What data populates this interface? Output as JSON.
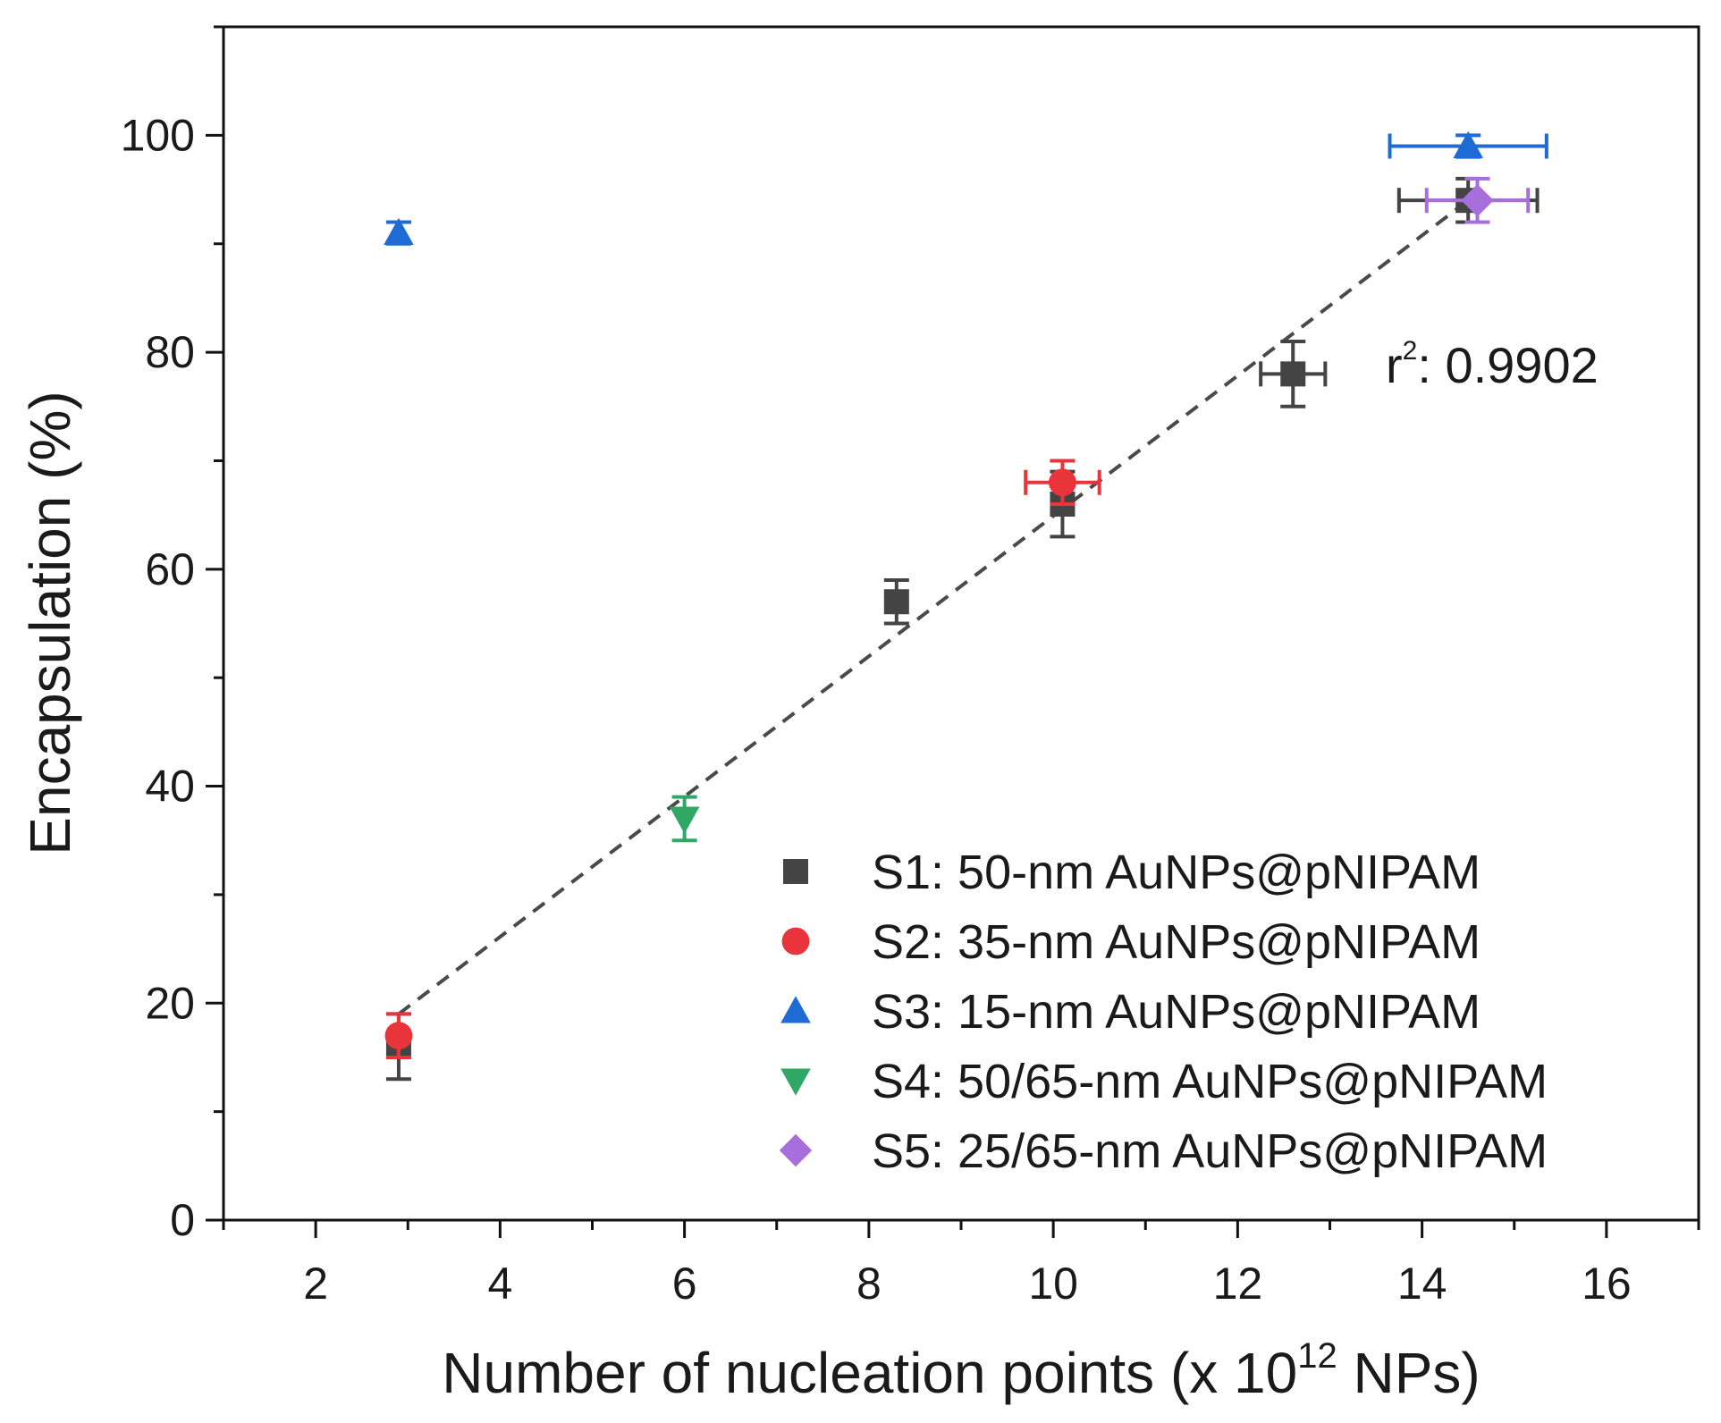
{
  "chart_data": {
    "type": "scatter",
    "title": "",
    "xlabel": "Number of nucleation points (x 10",
    "xlabel_sup": "12",
    "xlabel_end": " NPs)",
    "ylabel": "Encapsulation (%)",
    "xlim": [
      1,
      17
    ],
    "ylim": [
      0,
      110
    ],
    "x_ticks": [
      2,
      4,
      6,
      8,
      10,
      12,
      14,
      16
    ],
    "x_tick_labels": [
      "2",
      "4",
      "6",
      "8",
      "10",
      "12",
      "14",
      "16"
    ],
    "y_ticks": [
      0,
      20,
      40,
      60,
      80,
      100
    ],
    "y_tick_labels": [
      "0",
      "20",
      "40",
      "60",
      "80",
      "100"
    ],
    "grid": false,
    "legend_position": "bottom-right",
    "annotation": {
      "prefix": "r",
      "sup": "2",
      "suffix": ": 0.9902"
    },
    "fit_line": {
      "style": "dashed",
      "color": "#4a4a4a",
      "x": [
        2.9,
        14.5
      ],
      "y": [
        19,
        94
      ]
    },
    "series": [
      {
        "name": "S1: 50-nm AuNPs@pNIPAM",
        "marker": "square",
        "color": "#444444",
        "points": [
          {
            "x": 2.9,
            "y": 16,
            "xerr": 0,
            "yerr": 3
          },
          {
            "x": 8.3,
            "y": 57,
            "xerr": 0,
            "yerr": 2
          },
          {
            "x": 10.1,
            "y": 66,
            "xerr": 0,
            "yerr": 3
          },
          {
            "x": 12.6,
            "y": 78,
            "xerr": 0.35,
            "yerr": 3
          },
          {
            "x": 14.5,
            "y": 94,
            "xerr": 0.75,
            "yerr": 2
          }
        ]
      },
      {
        "name": "S2: 35-nm AuNPs@pNIPAM",
        "marker": "circle",
        "color": "#e8343a",
        "points": [
          {
            "x": 2.9,
            "y": 17,
            "xerr": 0,
            "yerr": 2
          },
          {
            "x": 10.1,
            "y": 68,
            "xerr": 0.4,
            "yerr": 2
          }
        ]
      },
      {
        "name": "S3: 15-nm AuNPs@pNIPAM",
        "marker": "triangle-up",
        "color": "#1f6bd6",
        "points": [
          {
            "x": 2.9,
            "y": 91,
            "xerr": 0,
            "yerr": 1
          },
          {
            "x": 14.5,
            "y": 99,
            "xerr": 0.85,
            "yerr": 1
          }
        ]
      },
      {
        "name": "S4: 50/65-nm AuNPs@pNIPAM",
        "marker": "triangle-down",
        "color": "#2fa866",
        "points": [
          {
            "x": 6.0,
            "y": 37,
            "xerr": 0,
            "yerr": 2
          }
        ]
      },
      {
        "name": "S5: 25/65-nm AuNPs@pNIPAM",
        "marker": "diamond",
        "color": "#a66fdc",
        "points": [
          {
            "x": 14.6,
            "y": 94,
            "xerr": 0.55,
            "yerr": 2
          }
        ]
      }
    ]
  }
}
